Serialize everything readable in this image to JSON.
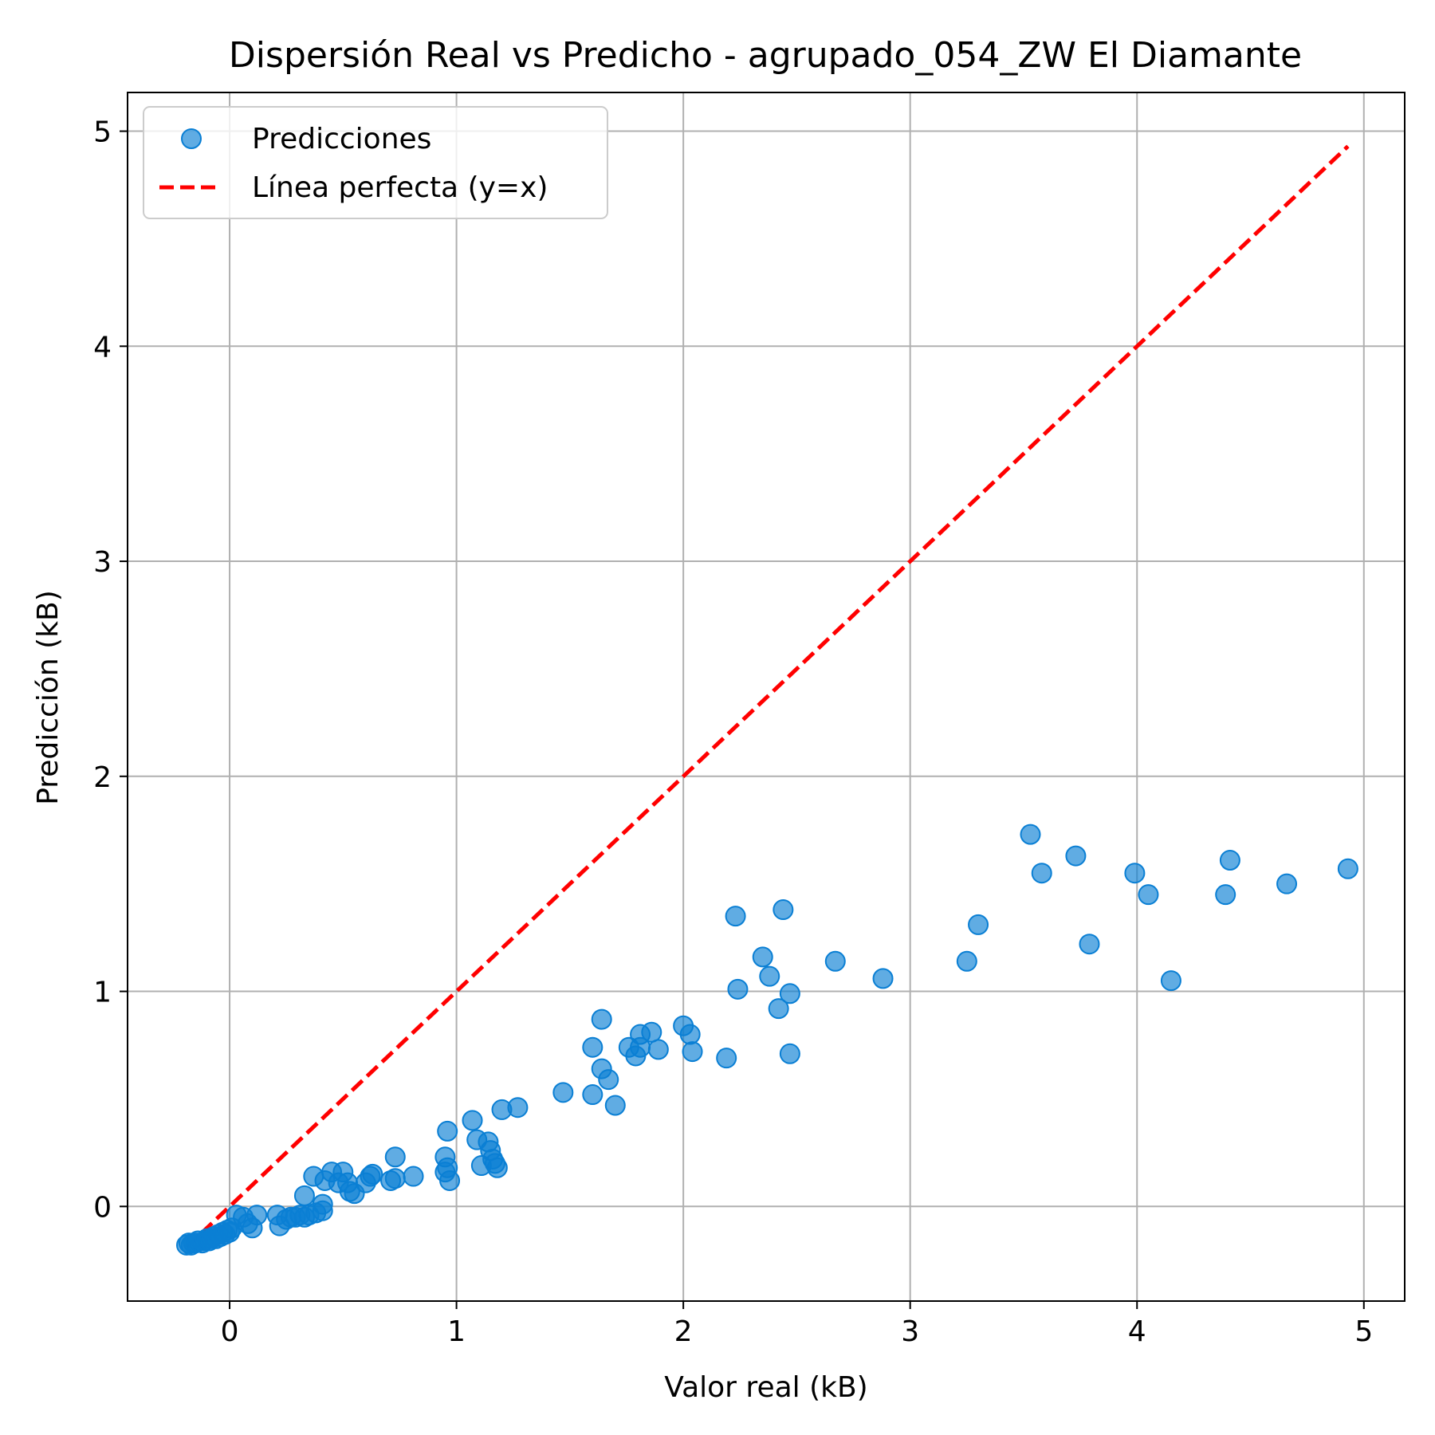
{
  "chart_data": {
    "type": "scatter",
    "title": "Dispersión Real vs Predicho - agrupado_054_ZW El Diamante",
    "xlabel": "Valor real (kB)",
    "ylabel": "Predicción (kB)",
    "xlim": [
      -0.45,
      5.18
    ],
    "ylim": [
      -0.44,
      5.18
    ],
    "xticks": [
      0,
      1,
      2,
      3,
      4,
      5
    ],
    "yticks": [
      0,
      1,
      2,
      3,
      4,
      5
    ],
    "grid": true,
    "legend_position": "top-left",
    "series": [
      {
        "name": "Predicciones",
        "kind": "scatter",
        "color": "#0a7fd4",
        "points": [
          [
            -0.19,
            -0.18
          ],
          [
            -0.18,
            -0.17
          ],
          [
            -0.17,
            -0.18
          ],
          [
            -0.16,
            -0.17
          ],
          [
            -0.15,
            -0.17
          ],
          [
            -0.14,
            -0.16
          ],
          [
            -0.12,
            -0.17
          ],
          [
            -0.11,
            -0.16
          ],
          [
            -0.1,
            -0.15
          ],
          [
            -0.09,
            -0.16
          ],
          [
            -0.08,
            -0.15
          ],
          [
            -0.07,
            -0.14
          ],
          [
            -0.06,
            -0.15
          ],
          [
            -0.05,
            -0.13
          ],
          [
            -0.04,
            -0.14
          ],
          [
            -0.03,
            -0.12
          ],
          [
            -0.02,
            -0.13
          ],
          [
            -0.01,
            -0.11
          ],
          [
            0.0,
            -0.12
          ],
          [
            0.01,
            -0.1
          ],
          [
            0.03,
            -0.04
          ],
          [
            0.06,
            -0.05
          ],
          [
            0.08,
            -0.08
          ],
          [
            0.1,
            -0.1
          ],
          [
            0.12,
            -0.04
          ],
          [
            0.21,
            -0.04
          ],
          [
            0.22,
            -0.09
          ],
          [
            0.25,
            -0.06
          ],
          [
            0.27,
            -0.05
          ],
          [
            0.29,
            -0.05
          ],
          [
            0.31,
            -0.04
          ],
          [
            0.33,
            -0.05
          ],
          [
            0.35,
            -0.04
          ],
          [
            0.38,
            -0.03
          ],
          [
            0.41,
            -0.02
          ],
          [
            0.41,
            0.01
          ],
          [
            0.33,
            0.05
          ],
          [
            0.37,
            0.14
          ],
          [
            0.42,
            0.12
          ],
          [
            0.45,
            0.16
          ],
          [
            0.48,
            0.11
          ],
          [
            0.5,
            0.16
          ],
          [
            0.52,
            0.11
          ],
          [
            0.53,
            0.07
          ],
          [
            0.55,
            0.06
          ],
          [
            0.6,
            0.11
          ],
          [
            0.62,
            0.14
          ],
          [
            0.63,
            0.15
          ],
          [
            0.71,
            0.12
          ],
          [
            0.73,
            0.23
          ],
          [
            0.73,
            0.13
          ],
          [
            0.81,
            0.14
          ],
          [
            0.95,
            0.16
          ],
          [
            0.96,
            0.18
          ],
          [
            0.95,
            0.23
          ],
          [
            0.97,
            0.12
          ],
          [
            0.96,
            0.35
          ],
          [
            1.07,
            0.4
          ],
          [
            1.09,
            0.31
          ],
          [
            1.11,
            0.19
          ],
          [
            1.14,
            0.3
          ],
          [
            1.15,
            0.26
          ],
          [
            1.16,
            0.22
          ],
          [
            1.17,
            0.2
          ],
          [
            1.18,
            0.18
          ],
          [
            1.2,
            0.45
          ],
          [
            1.27,
            0.46
          ],
          [
            1.47,
            0.53
          ],
          [
            1.6,
            0.74
          ],
          [
            1.6,
            0.52
          ],
          [
            1.64,
            0.87
          ],
          [
            1.64,
            0.64
          ],
          [
            1.67,
            0.59
          ],
          [
            1.7,
            0.47
          ],
          [
            1.76,
            0.74
          ],
          [
            1.79,
            0.7
          ],
          [
            1.81,
            0.74
          ],
          [
            1.81,
            0.8
          ],
          [
            1.86,
            0.81
          ],
          [
            1.89,
            0.73
          ],
          [
            2.0,
            0.84
          ],
          [
            2.03,
            0.8
          ],
          [
            2.04,
            0.72
          ],
          [
            2.19,
            0.69
          ],
          [
            2.23,
            1.35
          ],
          [
            2.24,
            1.01
          ],
          [
            2.35,
            1.16
          ],
          [
            2.38,
            1.07
          ],
          [
            2.42,
            0.92
          ],
          [
            2.44,
            1.38
          ],
          [
            2.47,
            0.99
          ],
          [
            2.47,
            0.71
          ],
          [
            2.67,
            1.14
          ],
          [
            2.88,
            1.06
          ],
          [
            3.25,
            1.14
          ],
          [
            3.3,
            1.31
          ],
          [
            3.53,
            1.73
          ],
          [
            3.58,
            1.55
          ],
          [
            3.73,
            1.63
          ],
          [
            3.79,
            1.22
          ],
          [
            3.99,
            1.55
          ],
          [
            4.05,
            1.45
          ],
          [
            4.15,
            1.05
          ],
          [
            4.39,
            1.45
          ],
          [
            4.41,
            1.61
          ],
          [
            4.66,
            1.5
          ],
          [
            4.93,
            1.57
          ]
        ]
      },
      {
        "name": "Línea perfecta (y=x)",
        "kind": "line",
        "color": "#ff0000",
        "x": [
          -0.19,
          4.93
        ],
        "y": [
          -0.19,
          4.93
        ]
      }
    ]
  }
}
